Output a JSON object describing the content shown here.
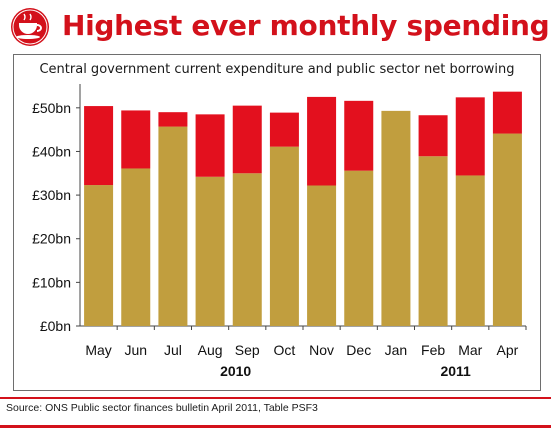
{
  "header": {
    "title": "Highest ever monthly spending"
  },
  "footer": {
    "source": "Source: ONS Public sector finances bulletin April 2011, Table PSF3"
  },
  "colors": {
    "expenditure": "#c19e3e",
    "borrowing": "#e3101e",
    "title": "#d3111b"
  },
  "chart_data": {
    "type": "bar",
    "stacked": true,
    "title": "Central government current expenditure and public sector net borrowing",
    "categories": [
      "May",
      "Jun",
      "Jul",
      "Aug",
      "Sep",
      "Oct",
      "Nov",
      "Dec",
      "Jan",
      "Feb",
      "Mar",
      "Apr"
    ],
    "year_labels": [
      "2010",
      "2011"
    ],
    "series": [
      {
        "values": [
          32.3,
          36.1,
          45.7,
          34.2,
          35.0,
          41.1,
          32.2,
          35.6,
          49.3,
          38.9,
          34.5,
          44.1
        ]
      },
      {
        "values": [
          18.1,
          13.3,
          3.3,
          14.3,
          15.5,
          7.8,
          20.3,
          16.0,
          0,
          9.4,
          17.9,
          9.6
        ]
      }
    ],
    "ylim": [
      0,
      55
    ],
    "yticks": [
      "£0bn",
      "£10bn",
      "£20bn",
      "£30bn",
      "£40bn",
      "£50bn"
    ],
    "ytick_values": [
      0,
      10,
      20,
      30,
      40,
      50
    ],
    "grid": false,
    "legend": "none"
  }
}
